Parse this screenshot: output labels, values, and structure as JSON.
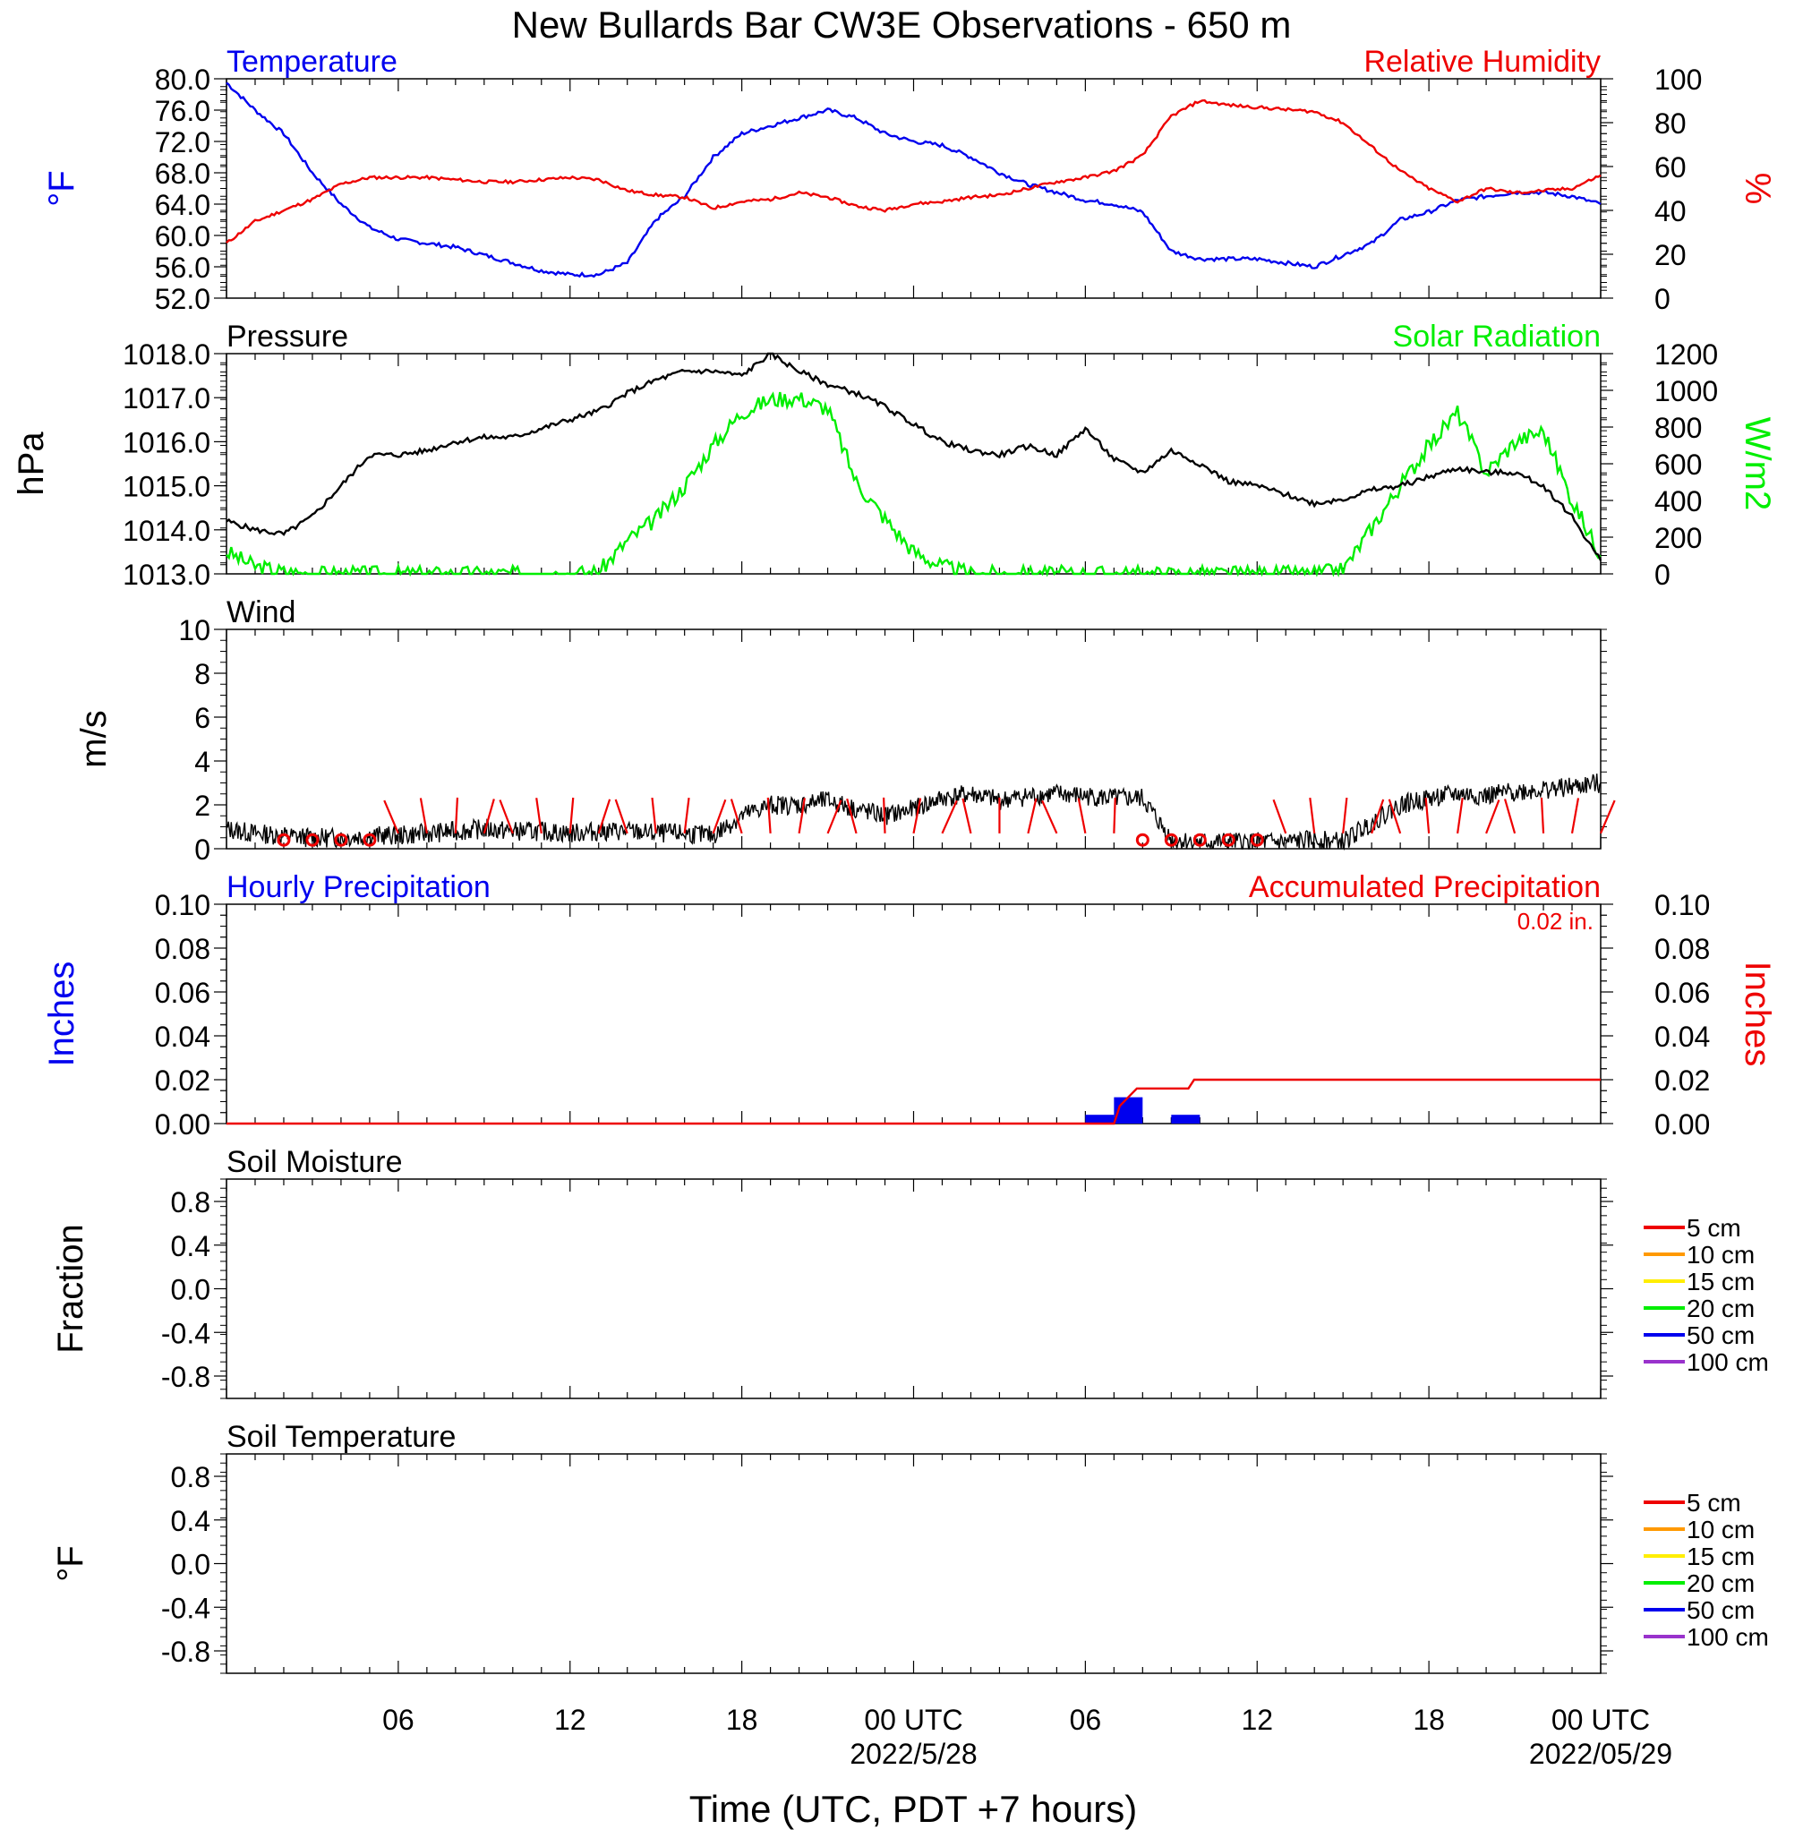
{
  "title": "New Bullards Bar CW3E Observations - 650 m",
  "x_axis": {
    "label": "Time (UTC, PDT +7 hours)",
    "tick_labels": [
      "06",
      "12",
      "18",
      "00 UTC",
      "06",
      "12",
      "18",
      "00 UTC"
    ],
    "date_labels": [
      "2022/5/28",
      "2022/05/29"
    ]
  },
  "chart_data": [
    {
      "panel": "temperature_rh",
      "type": "line",
      "title_left": "Temperature",
      "title_right": "Relative Humidity",
      "ylabel_left": "°F",
      "ylabel_right": "%",
      "ylim_left": [
        52,
        80
      ],
      "ylim_right": [
        0,
        100
      ],
      "yticks_left": [
        "80.0",
        "76.0",
        "72.0",
        "68.0",
        "64.0",
        "60.0",
        "56.0",
        "52.0"
      ],
      "yticks_right": [
        "100",
        "80",
        "60",
        "40",
        "20",
        "0"
      ],
      "x_hours": [
        0,
        1,
        2,
        3,
        4,
        5,
        6,
        7,
        8,
        9,
        10,
        11,
        12,
        13,
        14,
        15,
        16,
        17,
        18,
        19,
        20,
        21,
        22,
        23,
        24,
        25,
        26,
        27,
        28,
        29,
        30,
        31,
        32,
        33,
        34,
        35,
        36,
        37,
        38,
        39,
        40,
        41,
        42,
        43,
        44,
        45,
        46,
        47,
        48
      ],
      "series": [
        {
          "name": "Temperature",
          "axis": "left",
          "color": "#0000ee",
          "values": [
            79.5,
            76,
            73,
            68,
            64,
            61,
            59.5,
            59,
            58.5,
            57.5,
            56.5,
            55.5,
            55,
            55,
            56.5,
            62,
            65,
            70,
            73,
            74,
            75,
            76,
            75,
            73,
            72,
            71.5,
            70,
            68,
            66.5,
            65.5,
            64.5,
            64,
            63,
            58,
            57,
            57,
            57,
            56.5,
            56,
            57.5,
            59,
            62,
            63,
            64.5,
            65,
            65.5,
            65.5,
            65,
            64
          ]
        },
        {
          "name": "Relative Humidity",
          "axis": "right",
          "color": "#ee0000",
          "values": [
            25,
            35,
            40,
            45,
            52,
            55,
            55,
            55,
            54,
            53,
            53,
            54,
            55,
            54,
            49,
            47,
            46,
            41,
            44,
            45,
            48,
            46,
            42,
            40,
            43,
            44,
            46,
            47,
            50,
            53,
            55,
            58,
            65,
            83,
            90,
            88,
            87,
            86,
            85,
            80,
            69,
            58,
            50,
            44,
            50,
            48,
            49,
            50,
            56
          ]
        }
      ]
    },
    {
      "panel": "pressure_solar",
      "type": "line",
      "title_left": "Pressure",
      "title_right": "Solar Radiation",
      "ylabel_left": "hPa",
      "ylabel_right": "W/m2",
      "ylim_left": [
        1013,
        1018
      ],
      "ylim_right": [
        0,
        1200
      ],
      "yticks_left": [
        "1018.0",
        "1017.0",
        "1016.0",
        "1015.0",
        "1014.0",
        "1013.0"
      ],
      "yticks_right": [
        "1200",
        "1000",
        "800",
        "600",
        "400",
        "200",
        "0"
      ],
      "x_hours": [
        0,
        1,
        2,
        3,
        4,
        5,
        6,
        7,
        8,
        9,
        10,
        11,
        12,
        13,
        14,
        15,
        16,
        17,
        18,
        19,
        20,
        21,
        22,
        23,
        24,
        25,
        26,
        27,
        28,
        29,
        30,
        31,
        32,
        33,
        34,
        35,
        36,
        37,
        38,
        39,
        40,
        41,
        42,
        43,
        44,
        45,
        46,
        47,
        48
      ],
      "series": [
        {
          "name": "Pressure",
          "axis": "left",
          "color": "#000000",
          "values": [
            1014.2,
            1014.0,
            1013.9,
            1014.3,
            1015.0,
            1015.7,
            1015.7,
            1015.8,
            1016.0,
            1016.1,
            1016.1,
            1016.3,
            1016.5,
            1016.7,
            1017.1,
            1017.4,
            1017.6,
            1017.6,
            1017.5,
            1018.0,
            1017.6,
            1017.3,
            1017.1,
            1016.8,
            1016.4,
            1016.0,
            1015.8,
            1015.7,
            1015.9,
            1015.7,
            1016.3,
            1015.6,
            1015.3,
            1015.8,
            1015.5,
            1015.1,
            1015.0,
            1014.8,
            1014.6,
            1014.7,
            1014.9,
            1015.0,
            1015.2,
            1015.4,
            1015.3,
            1015.3,
            1015.0,
            1014.3,
            1013.3
          ]
        },
        {
          "name": "Solar Radiation",
          "axis": "right",
          "color": "#00ee00",
          "values": [
            120,
            40,
            10,
            0,
            0,
            0,
            0,
            0,
            0,
            0,
            0,
            0,
            0,
            10,
            180,
            300,
            480,
            700,
            880,
            950,
            960,
            900,
            500,
            300,
            120,
            40,
            0,
            0,
            0,
            0,
            0,
            0,
            0,
            0,
            0,
            0,
            0,
            0,
            0,
            20,
            250,
            480,
            700,
            880,
            550,
            720,
            780,
            400,
            100
          ]
        }
      ]
    },
    {
      "panel": "wind",
      "type": "line",
      "title": "Wind",
      "ylabel": "m/s",
      "ylim": [
        0,
        10
      ],
      "yticks": [
        "10",
        "8",
        "6",
        "4",
        "2",
        "0"
      ],
      "x_hours": [
        0,
        1,
        2,
        3,
        4,
        5,
        6,
        7,
        8,
        9,
        10,
        11,
        12,
        13,
        14,
        15,
        16,
        17,
        18,
        19,
        20,
        21,
        22,
        23,
        24,
        25,
        26,
        27,
        28,
        29,
        30,
        31,
        32,
        33,
        34,
        35,
        36,
        37,
        38,
        39,
        40,
        41,
        42,
        43,
        44,
        45,
        46,
        47,
        48
      ],
      "series": [
        {
          "name": "Wind Speed",
          "color": "#000000",
          "values": [
            0.9,
            0.7,
            0.6,
            0.5,
            0.5,
            0.6,
            0.6,
            0.7,
            0.8,
            0.9,
            0.8,
            0.8,
            0.7,
            0.8,
            0.8,
            0.7,
            0.7,
            0.6,
            1.5,
            2,
            2,
            2.2,
            1.8,
            1.5,
            1.8,
            2.3,
            2.5,
            2.2,
            2.4,
            2.5,
            2.4,
            2.3,
            2.3,
            0.4,
            0.3,
            0.3,
            0.3,
            0.3,
            0.4,
            0.3,
            1.2,
            2,
            2.3,
            2.5,
            2.4,
            2.6,
            2.7,
            2.8,
            3
          ]
        },
        {
          "name": "Wind Barbs",
          "color": "#ee0000",
          "hours": [
            2,
            3,
            4,
            5,
            6,
            7,
            8,
            9,
            10,
            11,
            12,
            13,
            14,
            15,
            16,
            17,
            18,
            19,
            20,
            21,
            22,
            23,
            24,
            25,
            26,
            27,
            28,
            29,
            30,
            31,
            32,
            33,
            34,
            35,
            36,
            37,
            38,
            39,
            40,
            41,
            42,
            43,
            44,
            45,
            46,
            47,
            48
          ],
          "calm_hours": [
            2,
            3,
            4,
            5,
            32,
            33,
            34,
            35,
            36
          ]
        }
      ]
    },
    {
      "panel": "precipitation",
      "type": "bar",
      "title_left": "Hourly Precipitation",
      "title_right": "Accumulated Precipitation",
      "annotation": "0.02 in.",
      "ylabel_left": "Inches",
      "ylabel_right": "Inches",
      "ylim": [
        0,
        0.1
      ],
      "yticks": [
        "0.10",
        "0.08",
        "0.06",
        "0.04",
        "0.02",
        "0.00"
      ],
      "series": [
        {
          "name": "Hourly Precipitation",
          "color": "#0000ee",
          "bars": [
            {
              "hour": 30,
              "value": 0.004
            },
            {
              "hour": 31,
              "value": 0.012
            },
            {
              "hour": 33,
              "value": 0.004
            }
          ]
        },
        {
          "name": "Accumulated Precipitation",
          "color": "#ee0000",
          "steps": [
            [
              0,
              0
            ],
            [
              31,
              0
            ],
            [
              31.2,
              0.008
            ],
            [
              31.5,
              0.012
            ],
            [
              31.8,
              0.016
            ],
            [
              33.6,
              0.016
            ],
            [
              33.8,
              0.02
            ],
            [
              48,
              0.02
            ]
          ]
        }
      ]
    },
    {
      "panel": "soil_moisture",
      "type": "line",
      "title": "Soil Moisture",
      "ylabel": "Fraction",
      "yticks": [
        "0.8",
        "0.4",
        "0.0",
        "-0.4",
        "-0.8"
      ],
      "legend": [
        {
          "label": "5 cm",
          "color": "#ee0000"
        },
        {
          "label": "10 cm",
          "color": "#ff9900"
        },
        {
          "label": "15 cm",
          "color": "#ffee00"
        },
        {
          "label": "20 cm",
          "color": "#00ee00"
        },
        {
          "label": "50 cm",
          "color": "#0000ee"
        },
        {
          "label": "100 cm",
          "color": "#9932cc"
        }
      ]
    },
    {
      "panel": "soil_temperature",
      "type": "line",
      "title": "Soil Temperature",
      "ylabel": "°F",
      "yticks": [
        "0.8",
        "0.4",
        "0.0",
        "-0.4",
        "-0.8"
      ],
      "legend": [
        {
          "label": "5 cm",
          "color": "#ee0000"
        },
        {
          "label": "10 cm",
          "color": "#ff9900"
        },
        {
          "label": "15 cm",
          "color": "#ffee00"
        },
        {
          "label": "20 cm",
          "color": "#00ee00"
        },
        {
          "label": "50 cm",
          "color": "#0000ee"
        },
        {
          "label": "100 cm",
          "color": "#9932cc"
        }
      ]
    }
  ]
}
